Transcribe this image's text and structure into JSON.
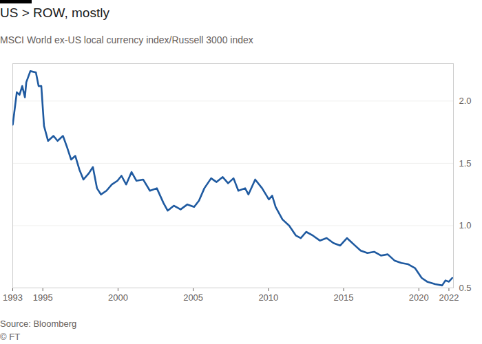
{
  "chart_data": {
    "type": "line",
    "title": "US > ROW, mostly",
    "subtitle": "MSCI World ex-US local currency index/Russell 3000 index",
    "source": "Source: Bloomberg",
    "credit": "© FT",
    "color": "#1f5aa0",
    "grid": true,
    "x": [
      1993.0,
      1993.27,
      1993.45,
      1993.63,
      1993.81,
      1993.9,
      1994.17,
      1994.54,
      1994.72,
      1994.9,
      1995.08,
      1995.35,
      1995.71,
      1995.98,
      1996.34,
      1996.61,
      1996.88,
      1997.16,
      1997.43,
      1997.7,
      1998.06,
      1998.33,
      1998.6,
      1998.87,
      1999.23,
      1999.59,
      1999.96,
      2000.23,
      2000.54,
      2000.9,
      2001.22,
      2001.67,
      2002.12,
      2002.58,
      2003.03,
      2003.3,
      2003.71,
      2004.16,
      2004.61,
      2005.06,
      2005.38,
      2005.74,
      2006.19,
      2006.55,
      2006.96,
      2007.32,
      2007.68,
      2008.0,
      2008.45,
      2008.67,
      2009.12,
      2009.58,
      2010.03,
      2010.25,
      2010.48,
      2010.93,
      2011.38,
      2011.83,
      2012.15,
      2012.51,
      2012.96,
      2013.42,
      2013.87,
      2014.32,
      2014.77,
      2015.22,
      2015.67,
      2016.13,
      2016.58,
      2017.03,
      2017.48,
      2017.93,
      2018.38,
      2018.84,
      2019.29,
      2019.74,
      2020.19,
      2020.55,
      2021.09,
      2021.55,
      2021.77,
      2022.0,
      2022.22
    ],
    "values": [
      1.81,
      2.07,
      2.05,
      2.12,
      2.03,
      2.15,
      2.24,
      2.23,
      2.12,
      2.12,
      1.8,
      1.68,
      1.72,
      1.68,
      1.72,
      1.63,
      1.53,
      1.56,
      1.45,
      1.37,
      1.42,
      1.47,
      1.3,
      1.25,
      1.28,
      1.33,
      1.36,
      1.4,
      1.33,
      1.43,
      1.36,
      1.37,
      1.28,
      1.3,
      1.18,
      1.12,
      1.16,
      1.13,
      1.17,
      1.15,
      1.2,
      1.3,
      1.38,
      1.35,
      1.39,
      1.34,
      1.38,
      1.28,
      1.3,
      1.25,
      1.37,
      1.3,
      1.21,
      1.24,
      1.15,
      1.05,
      1.0,
      0.92,
      0.9,
      0.95,
      0.92,
      0.88,
      0.9,
      0.86,
      0.84,
      0.9,
      0.85,
      0.8,
      0.78,
      0.79,
      0.76,
      0.77,
      0.72,
      0.7,
      0.69,
      0.66,
      0.58,
      0.55,
      0.53,
      0.52,
      0.56,
      0.55,
      0.58
    ],
    "xlim": [
      1993,
      2022.3
    ],
    "xticks": [
      1993,
      1995,
      2000,
      2005,
      2010,
      2015,
      2020,
      2022
    ],
    "ylim": [
      0.5,
      2.3
    ],
    "yticks": [
      0.5,
      {
        "value": 1,
        "label": "1.0"
      },
      1.5,
      {
        "value": 2,
        "label": "2.0"
      }
    ]
  }
}
